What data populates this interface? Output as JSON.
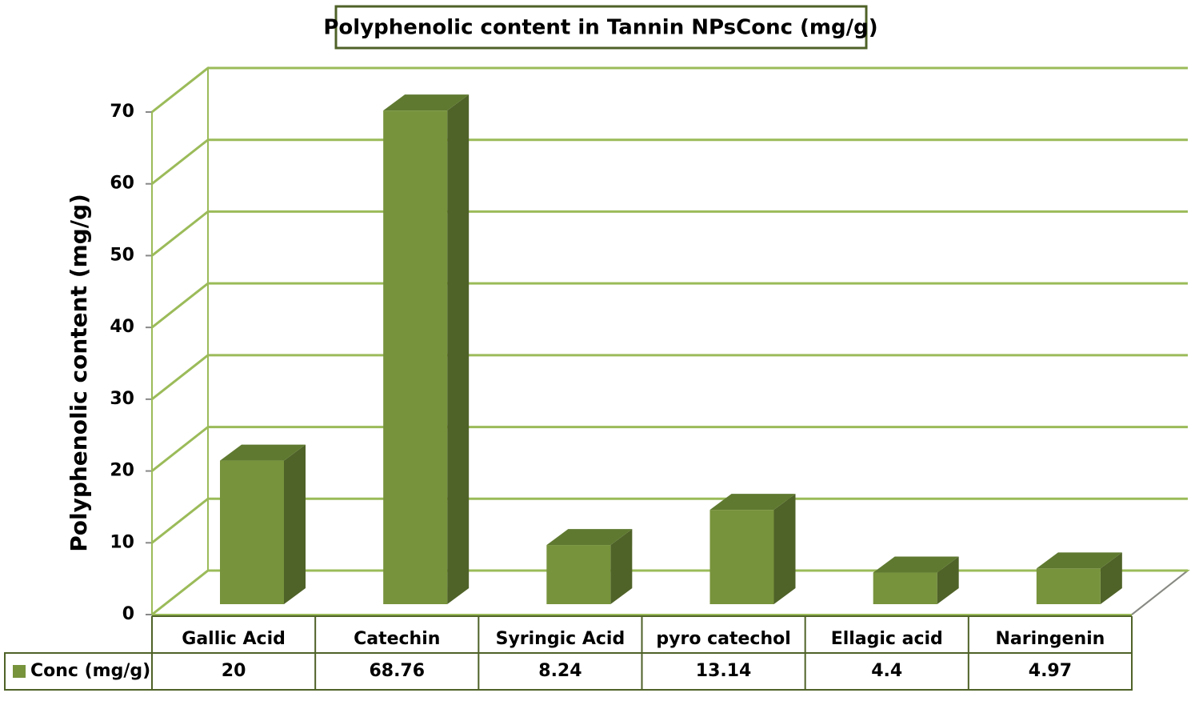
{
  "chart_data": {
    "type": "bar3d",
    "title": "Polyphenolic content in Tannin NPsConc (mg/g)",
    "y_label": "Polyphenolic content (mg/g)",
    "categories": [
      "Gallic Acid",
      "Catechin",
      "Syringic Acid",
      "pyro catechol",
      "Ellagic acid",
      "Naringenin"
    ],
    "series": [
      {
        "name": "Conc (mg/g)",
        "color": "#77933c",
        "values": [
          20,
          68.76,
          8.24,
          13.14,
          4.4,
          4.97
        ]
      }
    ],
    "ylim": [
      0,
      70
    ],
    "yticks": [
      0,
      10,
      20,
      30,
      40,
      50,
      60,
      70
    ],
    "grid": true
  }
}
